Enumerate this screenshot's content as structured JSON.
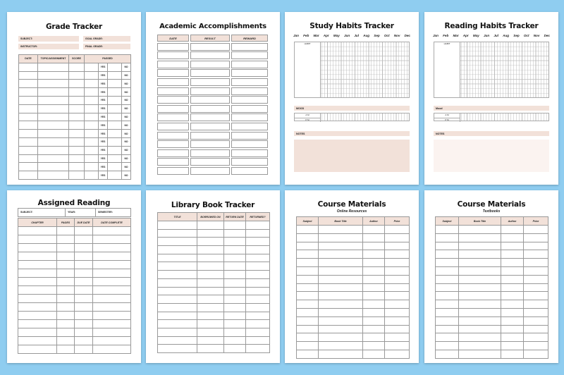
{
  "colors": {
    "background": "#8fcdf0",
    "accent": "#f2e1d9"
  },
  "grade": {
    "title": "Grade Tracker",
    "fields": [
      "SUBJECT:",
      "GOAL GRADE:",
      "INSTRUCTOR:",
      "FINAL GRADE:"
    ],
    "headers": [
      "DATE",
      "TOPIC/ASSIGNMENT",
      "SCORE",
      "PASSED"
    ],
    "yes": "YES",
    "no": "NO"
  },
  "academic": {
    "title": "Academic Accomplishments",
    "headers": [
      "DATE",
      "RESULT",
      "REWARD"
    ]
  },
  "study": {
    "title": "Study Habits Tracker",
    "months": [
      "Jan",
      "Feb",
      "Mar",
      "Apr",
      "May",
      "Jun",
      "Jul",
      "Aug",
      "Sep",
      "Oct",
      "Nov",
      "Dec"
    ],
    "habit": "HABIT",
    "mood": "MOOD",
    "am": "A M",
    "pm": "P M",
    "notes": "NOTES"
  },
  "reading": {
    "title": "Reading Habits Tracker",
    "months": [
      "Jan",
      "Feb",
      "Mar",
      "Apr",
      "May",
      "Jun",
      "Jul",
      "Aug",
      "Sep",
      "Oct",
      "Nov",
      "Dec"
    ],
    "habit": "HABIT",
    "mood": "Mood",
    "am": "A M",
    "pm": "P M",
    "notes": "NOTES"
  },
  "assigned": {
    "title": "Assigned Reading",
    "fields": [
      "SUBJECT:",
      "YEAR:",
      "SEMESTER:"
    ],
    "headers": [
      "CHAPTER",
      "PAGES",
      "DUE DATE",
      "DATE COMPLETE"
    ]
  },
  "library": {
    "title": "Library Book Tracker",
    "headers": [
      "TITLE",
      "BORROWED ON",
      "RETURN DATE",
      "RETURNED?"
    ]
  },
  "online": {
    "title": "Course Materials",
    "subtitle": "Online Resources",
    "headers": [
      "Subject",
      "Book Title",
      "Author",
      "Price"
    ]
  },
  "textbooks": {
    "title": "Course Materials",
    "subtitle": "Textbooks",
    "headers": [
      "Subject",
      "Book Title",
      "Author",
      "Price"
    ]
  }
}
